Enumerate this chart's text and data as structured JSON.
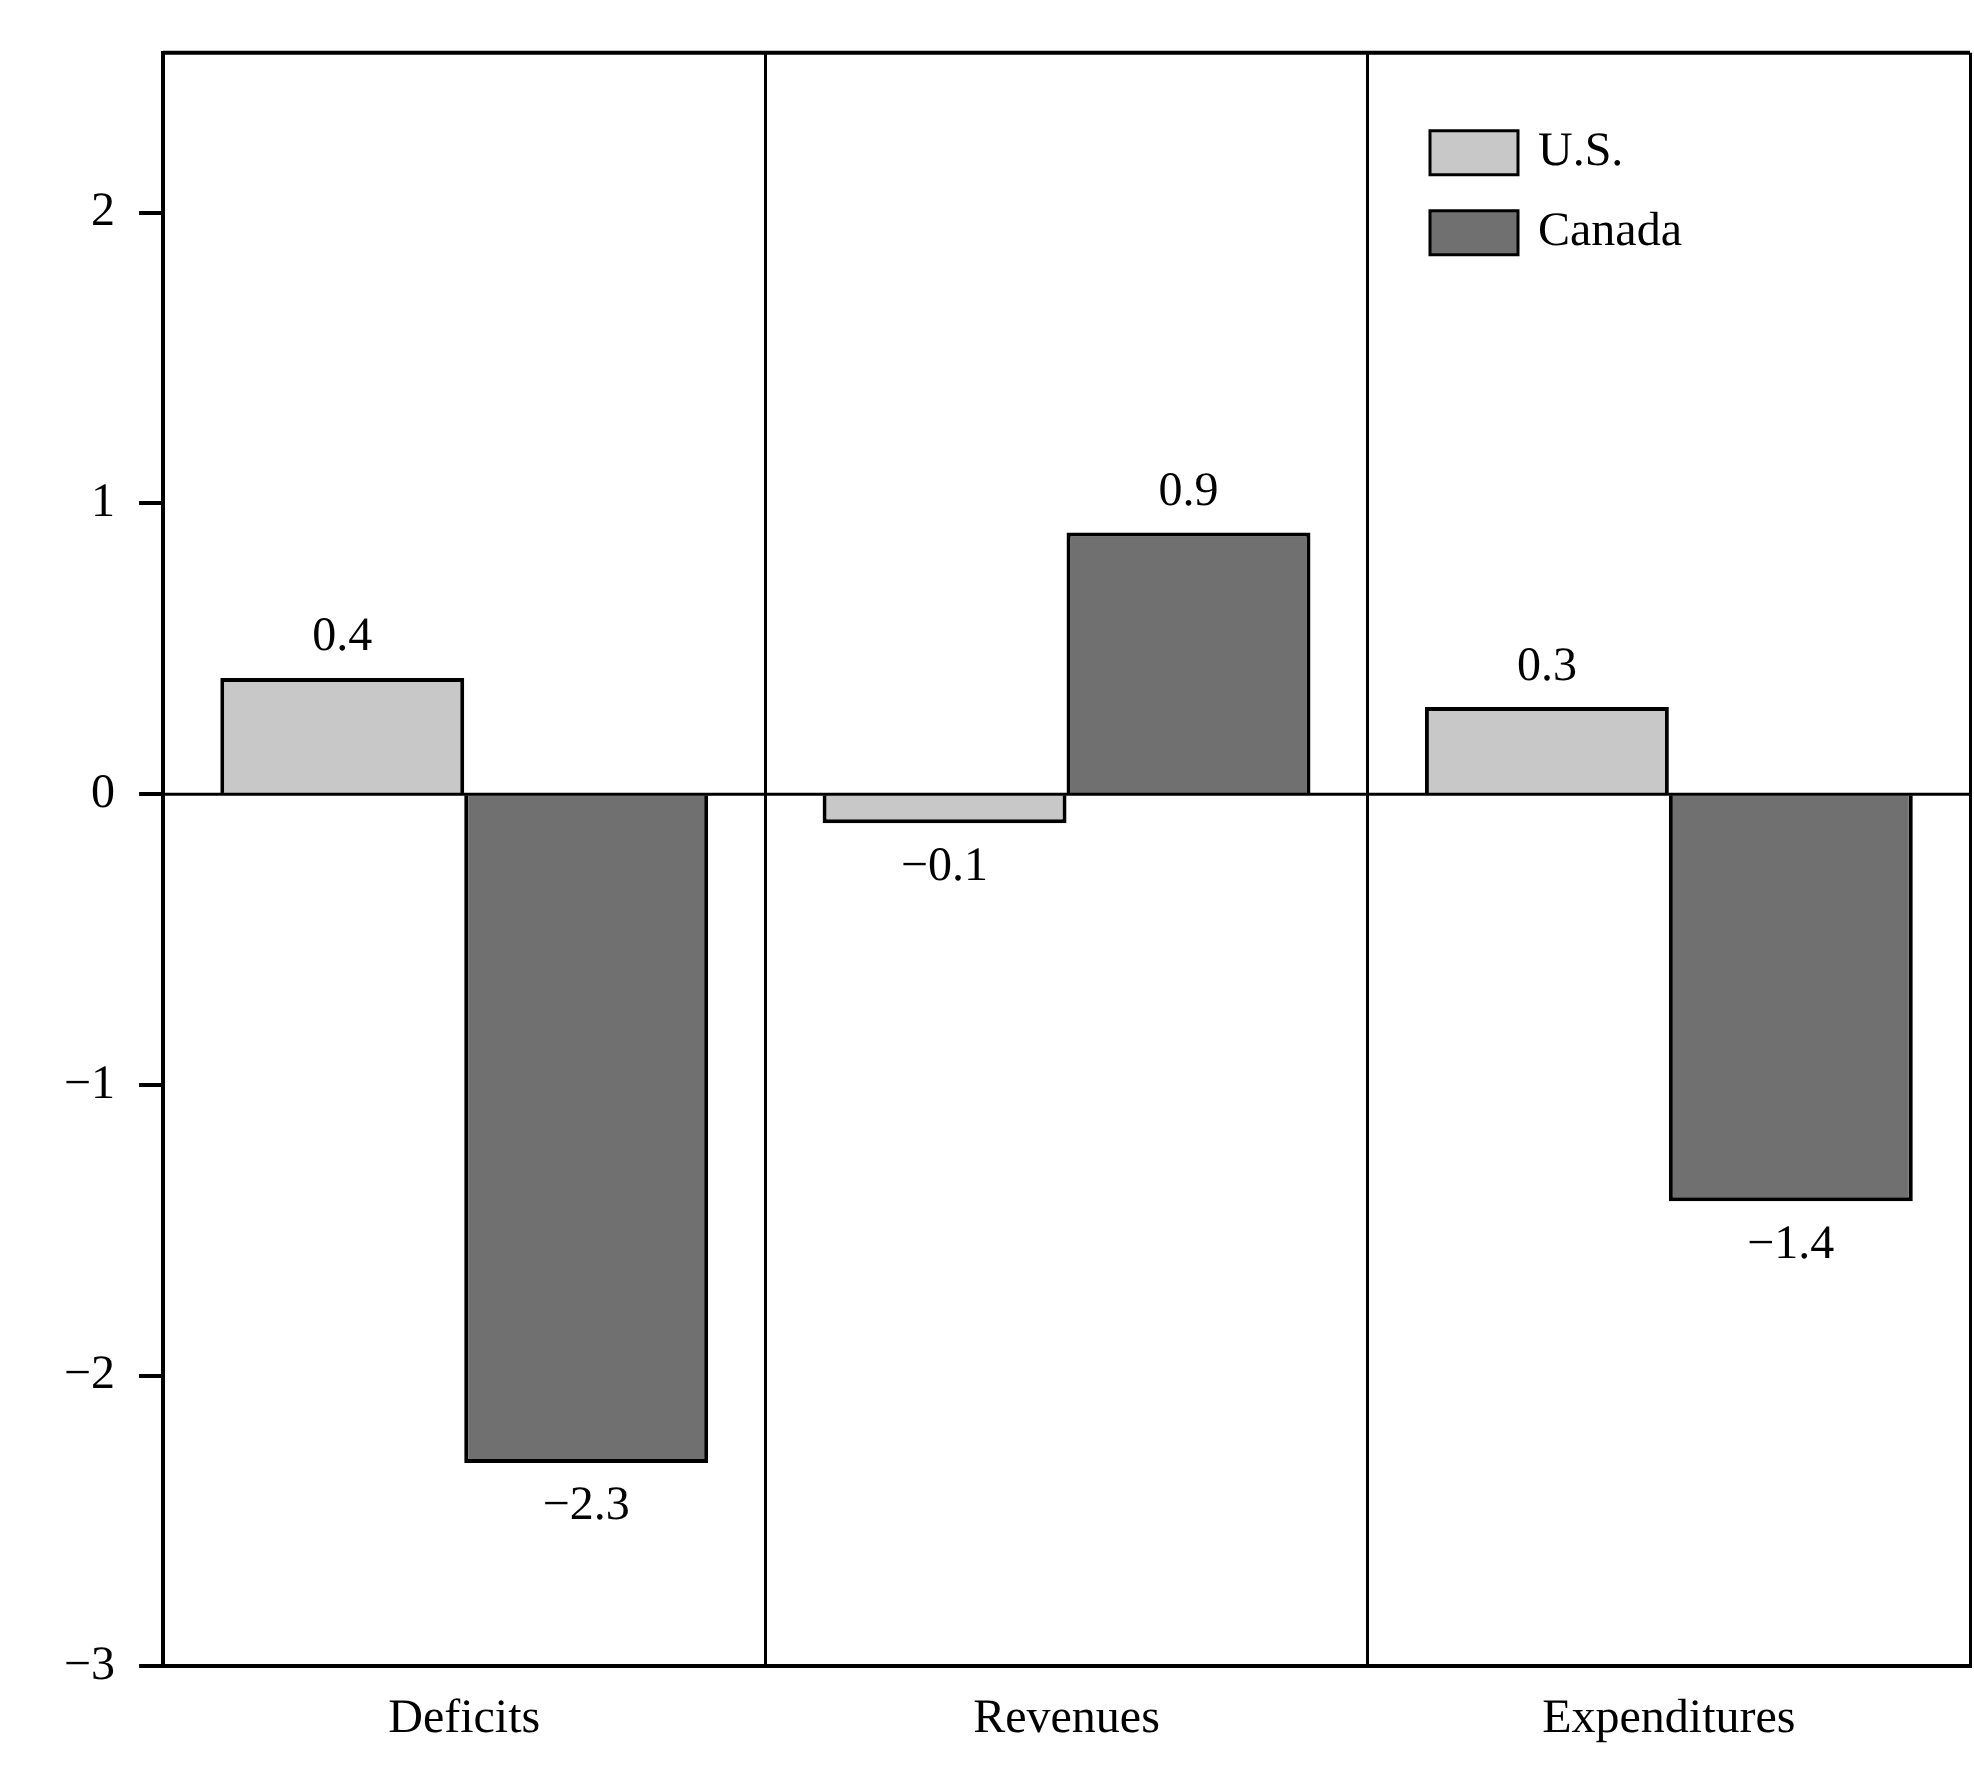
{
  "chart_data": {
    "type": "bar",
    "categories": [
      "Deficits",
      "Revenues",
      "Expenditures"
    ],
    "series": [
      {
        "name": "U.S.",
        "color": "#c8c8c8",
        "values": [
          0.4,
          -0.1,
          0.3
        ]
      },
      {
        "name": "Canada",
        "color": "#707070",
        "values": [
          -2.3,
          0.9,
          -1.4
        ]
      }
    ],
    "ylim": [
      -3,
      2.55
    ],
    "yticks": [
      -3,
      -2,
      -1,
      0,
      1,
      2
    ],
    "grid": "x",
    "ref_lines": [
      {
        "axis": "y",
        "value": 0
      }
    ],
    "legend": "top right",
    "data_labels": true
  }
}
